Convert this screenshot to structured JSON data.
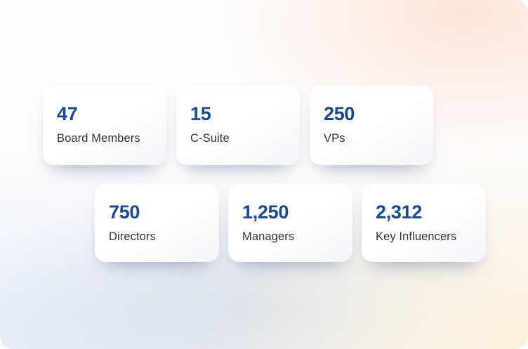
{
  "page": {
    "description": "Audience reach statistics dashboard"
  },
  "colors": {
    "value_color": "#17499e",
    "label_color": "#2f3440",
    "card_background": "#ffffff",
    "background_peach": "#fce4d8",
    "background_cream": "#fcf0db",
    "background_blue": "#e6eefa"
  },
  "cards": [
    {
      "value": "47",
      "label": "Board Members"
    },
    {
      "value": "15",
      "label": "C-Suite"
    },
    {
      "value": "250",
      "label": "VPs"
    },
    {
      "value": "750",
      "label": "Directors"
    },
    {
      "value": "1,250",
      "label": "Managers"
    },
    {
      "value": "2,312",
      "label": "Key Influencers"
    }
  ]
}
